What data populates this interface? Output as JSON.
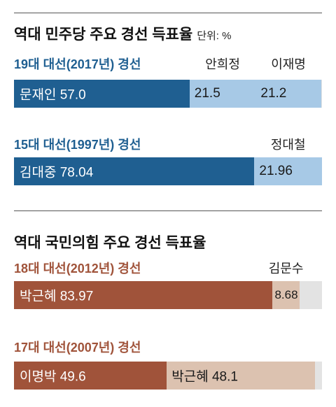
{
  "colors": {
    "blue_dark": "#1f5f91",
    "blue_light": "#a7c9e6",
    "brown_dark": "#a0533a",
    "brown_light": "#dcc2b0",
    "rest_gray": "#e3e3e3",
    "blue_title": "#1f5f91",
    "brown_title": "#a0533a"
  },
  "chart_data": [
    {
      "type": "bar",
      "orientation": "horizontal-stacked",
      "title": "역대 민주당 주요 경선 득표율",
      "unit": "단위: %",
      "xlim": [
        0,
        100
      ],
      "groups": [
        {
          "label": "19대 대선(2017년) 경선",
          "segments": [
            {
              "name": "문재인",
              "value": 57.0,
              "value_label": "57.0",
              "inside_name": true
            },
            {
              "name": "안희정",
              "value": 21.5,
              "value_label": "21.5",
              "inside_name": false
            },
            {
              "name": "이재명",
              "value": 21.2,
              "value_label": "21.2",
              "inside_name": false
            }
          ]
        },
        {
          "label": "15대 대선(1997년) 경선",
          "segments": [
            {
              "name": "김대중",
              "value": 78.04,
              "value_label": "78.04",
              "inside_name": true
            },
            {
              "name": "정대철",
              "value": 21.96,
              "value_label": "21.96",
              "inside_name": false
            }
          ]
        }
      ]
    },
    {
      "type": "bar",
      "orientation": "horizontal-stacked",
      "title": "역대 국민의힘 주요 경선 득표율",
      "xlim": [
        0,
        100
      ],
      "groups": [
        {
          "label": "18대 대선(2012년) 경선",
          "segments": [
            {
              "name": "박근혜",
              "value": 83.97,
              "value_label": "83.97",
              "inside_name": true
            },
            {
              "name": "김문수",
              "value": 8.68,
              "value_label": "8.68",
              "inside_name": false
            }
          ]
        },
        {
          "label": "17대 대선(2007년) 경선",
          "segments": [
            {
              "name": "이명박",
              "value": 49.6,
              "value_label": "49.6",
              "inside_name": true
            },
            {
              "name": "박근혜",
              "value": 48.1,
              "value_label": "48.1",
              "inside_name": true
            }
          ]
        }
      ]
    }
  ]
}
